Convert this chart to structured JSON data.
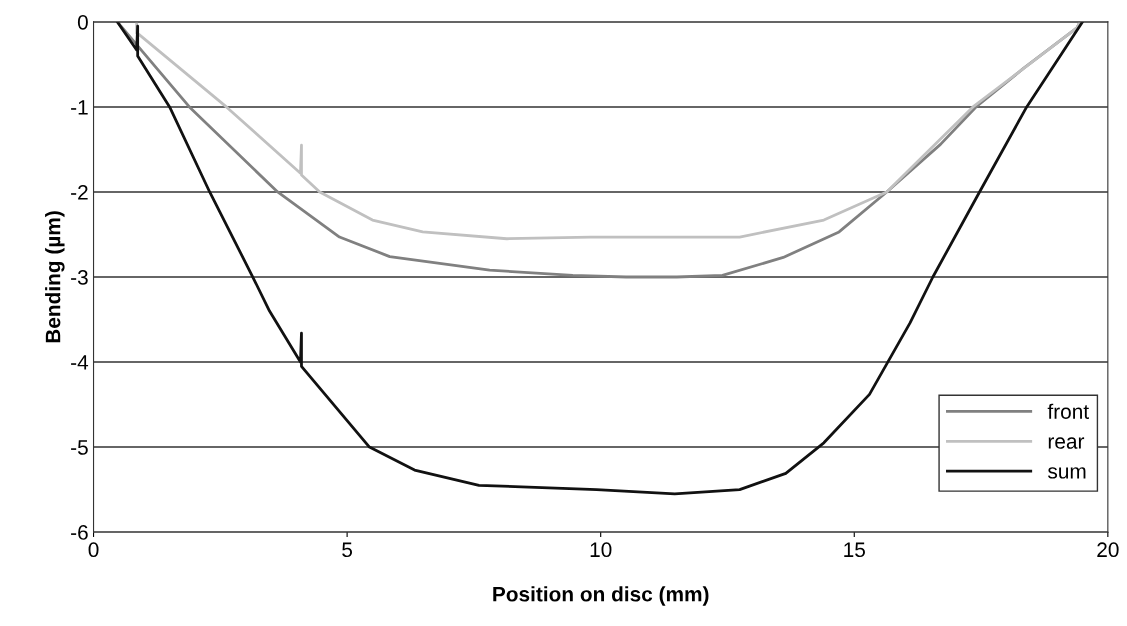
{
  "chart_data": {
    "type": "line",
    "xlabel": "Position on disc (mm)",
    "ylabel": "Bending (µm)",
    "xlim": [
      0,
      20
    ],
    "xticks": [
      0,
      5,
      10,
      15,
      20
    ],
    "ylim": [
      -6,
      0
    ],
    "yticks": [
      -6,
      -5,
      -4,
      -3,
      -2,
      -1,
      0
    ],
    "grid": "y",
    "legend": "lower right",
    "marker": "none",
    "line_style": "solid",
    "series": [
      {
        "name": "front",
        "color": "#808080",
        "x": [
          0.47,
          1.89,
          3.63,
          4.85,
          5.84,
          7.81,
          9.45,
          10.5,
          11.5,
          12.4,
          13.6,
          14.7,
          15.64,
          16.7,
          17.4,
          18.33,
          19.39,
          19.45
        ],
        "values": [
          0,
          -1.0,
          -2.0,
          -2.53,
          -2.76,
          -2.92,
          -2.98,
          -3.0,
          -3.0,
          -2.98,
          -2.77,
          -2.47,
          -2.0,
          -1.44,
          -1.0,
          -0.55,
          -0.07,
          0
        ]
      },
      {
        "name": "rear",
        "color": "#c0c0c0",
        "x": [
          0.85,
          0.85,
          0.9,
          2.62,
          4.08,
          4.1,
          4.1,
          4.46,
          5.5,
          6.49,
          8.15,
          9.8,
          12.74,
          14.4,
          15.64,
          17.34,
          19.39,
          19.45
        ],
        "values": [
          0,
          -0.13,
          -0.15,
          -1.0,
          -1.78,
          -1.45,
          -1.8,
          -2.0,
          -2.33,
          -2.47,
          -2.55,
          -2.53,
          -2.53,
          -2.33,
          -2.0,
          -1.0,
          -0.07,
          0
        ]
      },
      {
        "name": "sum",
        "color": "#111111",
        "x": [
          0.47,
          0.85,
          0.87,
          0.87,
          1.5,
          2.29,
          3.14,
          3.47,
          4.08,
          4.1,
          4.1,
          5.44,
          6.33,
          7.6,
          9.92,
          11.46,
          12.74,
          13.65,
          14.4,
          15.3,
          16.1,
          16.55,
          17.47,
          18.4,
          19.5
        ],
        "values": [
          0,
          -0.33,
          -0.05,
          -0.4,
          -1.0,
          -2.0,
          -3.0,
          -3.4,
          -4.0,
          -3.66,
          -4.05,
          -5.0,
          -5.27,
          -5.45,
          -5.5,
          -5.55,
          -5.5,
          -5.31,
          -4.95,
          -4.38,
          -3.54,
          -3.0,
          -2.0,
          -1.0,
          0
        ]
      }
    ]
  }
}
